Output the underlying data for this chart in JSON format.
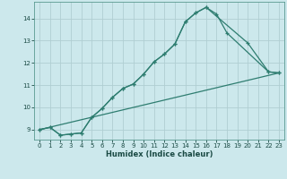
{
  "xlabel": "Humidex (Indice chaleur)",
  "bg_color": "#cce8ec",
  "grid_color": "#b0ced2",
  "line_color": "#2e7d70",
  "xlim": [
    -0.5,
    23.5
  ],
  "ylim": [
    8.55,
    14.75
  ],
  "xticks": [
    0,
    1,
    2,
    3,
    4,
    5,
    6,
    7,
    8,
    9,
    10,
    11,
    12,
    13,
    14,
    15,
    16,
    17,
    18,
    19,
    20,
    21,
    22,
    23
  ],
  "yticks": [
    9,
    10,
    11,
    12,
    13,
    14
  ],
  "line1_x": [
    0,
    1,
    2,
    3,
    4,
    5,
    6,
    7,
    8,
    9,
    10,
    11,
    12,
    13,
    14,
    15,
    16,
    17,
    18,
    22,
    23
  ],
  "line1_y": [
    9.0,
    9.1,
    8.75,
    8.8,
    8.85,
    9.55,
    9.95,
    10.45,
    10.85,
    11.05,
    11.5,
    12.05,
    12.4,
    12.85,
    13.85,
    14.25,
    14.5,
    14.2,
    13.35,
    11.6,
    11.55
  ],
  "line2_x": [
    0,
    1,
    2,
    3,
    4,
    5,
    6,
    7,
    8,
    9,
    10,
    11,
    12,
    13,
    14,
    15,
    16,
    20,
    22,
    23
  ],
  "line2_y": [
    9.0,
    9.1,
    8.75,
    8.8,
    8.85,
    9.55,
    9.95,
    10.45,
    10.85,
    11.05,
    11.5,
    12.05,
    12.4,
    12.85,
    13.85,
    14.25,
    14.5,
    12.9,
    11.6,
    11.55
  ],
  "line3_x": [
    0,
    23
  ],
  "line3_y": [
    9.0,
    11.55
  ]
}
